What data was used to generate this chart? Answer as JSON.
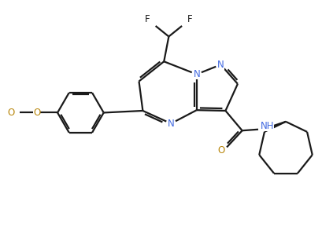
{
  "bg_color": "#ffffff",
  "lc": "#1a1a1a",
  "nc": "#4169e1",
  "oc": "#b8860b",
  "lw": 1.6,
  "figsize": [
    4.1,
    3.17
  ],
  "dpi": 100,
  "xlim": [
    0,
    10
  ],
  "ylim": [
    0,
    7.7
  ]
}
